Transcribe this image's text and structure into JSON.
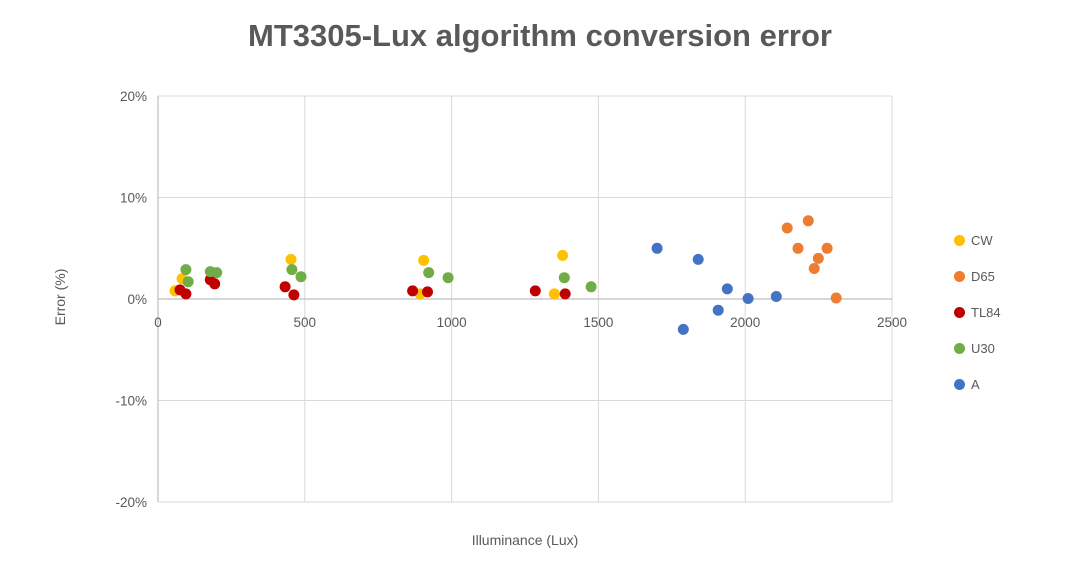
{
  "title": "MT3305-Lux algorithm conversion error",
  "colors": {
    "gridline": "#d9d9d9",
    "axis_line": "#bfbfbf",
    "axis_text": "#595959",
    "title_text": "#595959"
  },
  "chart_data": {
    "type": "scatter",
    "title": "MT3305-Lux algorithm conversion error",
    "xlabel": "Illuminance (Lux)",
    "ylabel": "Error (%)",
    "xlim": [
      0,
      2500
    ],
    "ylim_percent": [
      -20,
      20
    ],
    "x_ticks": [
      0,
      500,
      1000,
      1500,
      2000,
      2500
    ],
    "y_ticks": [
      "20%",
      "10%",
      "0%",
      "-10%",
      "-20%"
    ],
    "y_tick_values": [
      20,
      10,
      0,
      -10,
      -20
    ],
    "grid": true,
    "legend_position": "right",
    "series": [
      {
        "name": "CW",
        "color": "#FFC000",
        "points": [
          [
            58,
            0.8
          ],
          [
            82,
            2.0
          ],
          [
            453,
            3.9
          ],
          [
            893,
            0.5
          ],
          [
            905,
            3.8
          ],
          [
            1350,
            0.5
          ],
          [
            1378,
            4.3
          ]
        ]
      },
      {
        "name": "D65",
        "color": "#ED7D31",
        "points": [
          [
            2143,
            7.0
          ],
          [
            2180,
            5.0
          ],
          [
            2215,
            7.7
          ],
          [
            2235,
            3.0
          ],
          [
            2249,
            4.0
          ],
          [
            2279,
            5.0
          ],
          [
            2310,
            0.1
          ]
        ]
      },
      {
        "name": "TL84",
        "color": "#C00000",
        "points": [
          [
            75,
            0.9
          ],
          [
            95,
            0.5
          ],
          [
            178,
            1.9
          ],
          [
            193,
            1.5
          ],
          [
            433,
            1.2
          ],
          [
            463,
            0.4
          ],
          [
            867,
            0.8
          ],
          [
            918,
            0.7
          ],
          [
            1285,
            0.8
          ],
          [
            1387,
            0.5
          ]
        ]
      },
      {
        "name": "U30",
        "color": "#70AD47",
        "points": [
          [
            95,
            2.9
          ],
          [
            103,
            1.7
          ],
          [
            178,
            2.7
          ],
          [
            200,
            2.6
          ],
          [
            456,
            2.9
          ],
          [
            487,
            2.2
          ],
          [
            922,
            2.6
          ],
          [
            988,
            2.1
          ],
          [
            1384,
            2.1
          ],
          [
            1475,
            1.2
          ]
        ]
      },
      {
        "name": "A",
        "color": "#4472C4",
        "points": [
          [
            1700,
            5.0
          ],
          [
            1789,
            -3.0
          ],
          [
            1840,
            3.9
          ],
          [
            1908,
            -1.1
          ],
          [
            1939,
            1.0
          ],
          [
            2010,
            0.05
          ],
          [
            2106,
            0.25
          ]
        ]
      }
    ]
  }
}
